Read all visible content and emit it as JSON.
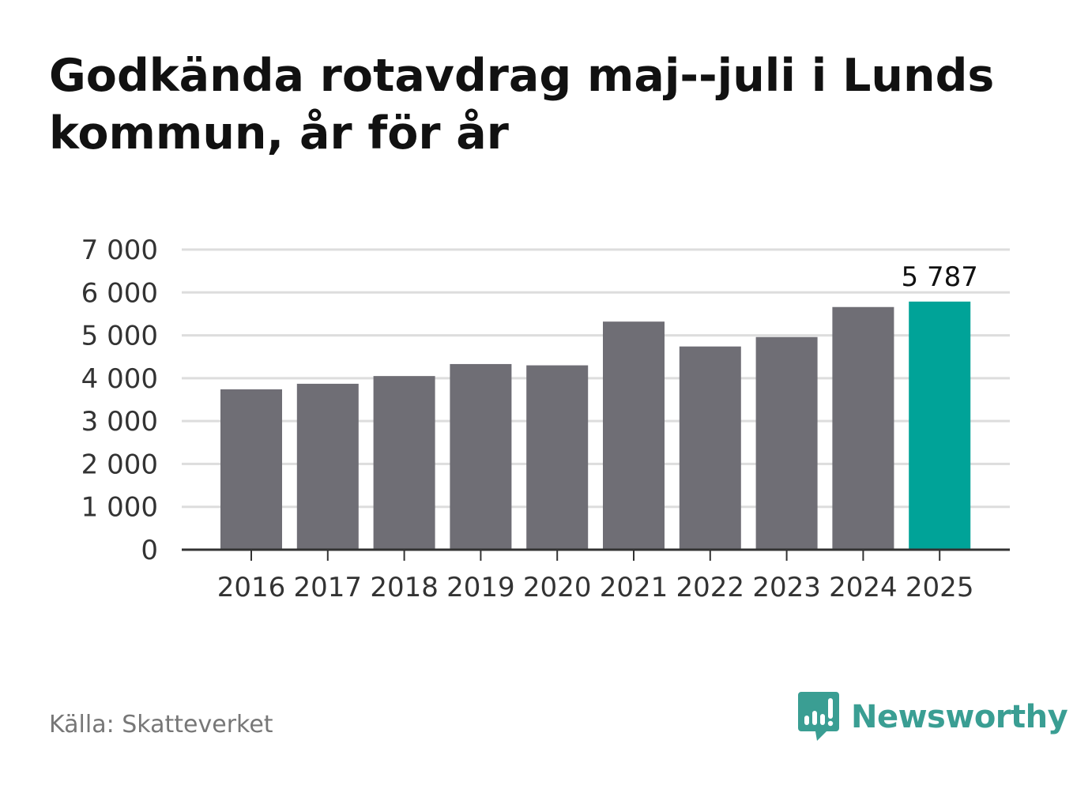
{
  "title": "Godkända rotavdrag maj--juli i Lunds kommun, år för år",
  "source": "Källa: Skatteverket",
  "brand": {
    "name": "Newsworthy",
    "icon": "newsworthy-logo-icon",
    "color": "#3a9e93"
  },
  "colors": {
    "bar": "#6f6e75",
    "highlight": "#00a398",
    "grid": "#dddddd",
    "axis": "#333333"
  },
  "chart_data": {
    "type": "bar",
    "title": "Godkända rotavdrag maj--juli i Lunds kommun, år för år",
    "xlabel": "",
    "ylabel": "",
    "categories": [
      "2016",
      "2017",
      "2018",
      "2019",
      "2020",
      "2021",
      "2022",
      "2023",
      "2024",
      "2025"
    ],
    "values": [
      3740,
      3870,
      4050,
      4330,
      4300,
      5320,
      4740,
      4960,
      5660,
      5787
    ],
    "highlight_index": 9,
    "data_labels": [
      {
        "index": 9,
        "text": "5 787"
      }
    ],
    "ylim": [
      0,
      7000
    ],
    "yticks": [
      0,
      1000,
      2000,
      3000,
      4000,
      5000,
      6000,
      7000
    ],
    "ytick_labels": [
      "0",
      "1 000",
      "2 000",
      "3 000",
      "4 000",
      "5 000",
      "6 000",
      "7 000"
    ],
    "grid": true,
    "legend": "none"
  }
}
